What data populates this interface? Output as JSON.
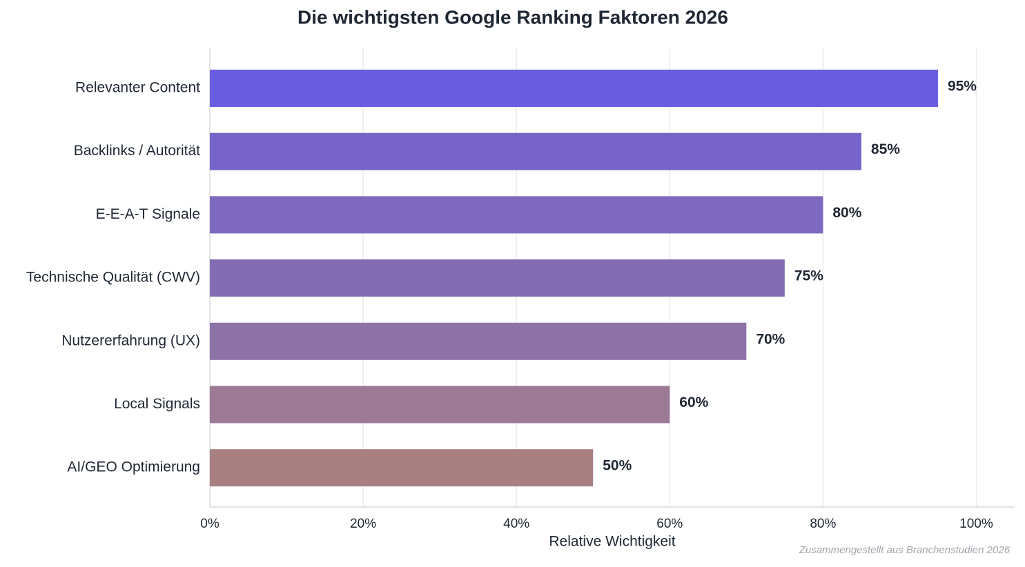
{
  "chart_data": {
    "type": "bar",
    "orientation": "horizontal",
    "title": "Die wichtigsten Google Ranking Faktoren 2026",
    "x_label": "Relative Wichtigkeit",
    "note": "Zusammengestellt aus Branchenstudien 2026",
    "categories": [
      "Relevanter Content",
      "Backlinks / Autorität",
      "E-E-A-T Signale",
      "Technische Qualität (CWV)",
      "Nutzererfahrung (UX)",
      "Local Signals",
      "AI/GEO Optimierung"
    ],
    "values": [
      95,
      85,
      80,
      75,
      70,
      60,
      50
    ],
    "value_labels": [
      "95%",
      "85%",
      "80%",
      "75%",
      "70%",
      "60%",
      "50%"
    ],
    "colors": [
      "#6a5ddf",
      "#7563c8",
      "#7d69c0",
      "#846cb3",
      "#8d72a8",
      "#9c7a95",
      "#a88082"
    ],
    "xlim": [
      0,
      105
    ],
    "xticks": [
      {
        "value": 0,
        "label": "0%"
      },
      {
        "value": 20,
        "label": "20%"
      },
      {
        "value": 40,
        "label": "40%"
      },
      {
        "value": 60,
        "label": "60%"
      },
      {
        "value": 80,
        "label": "80%"
      },
      {
        "value": 100,
        "label": "100%"
      }
    ],
    "grid": true
  }
}
